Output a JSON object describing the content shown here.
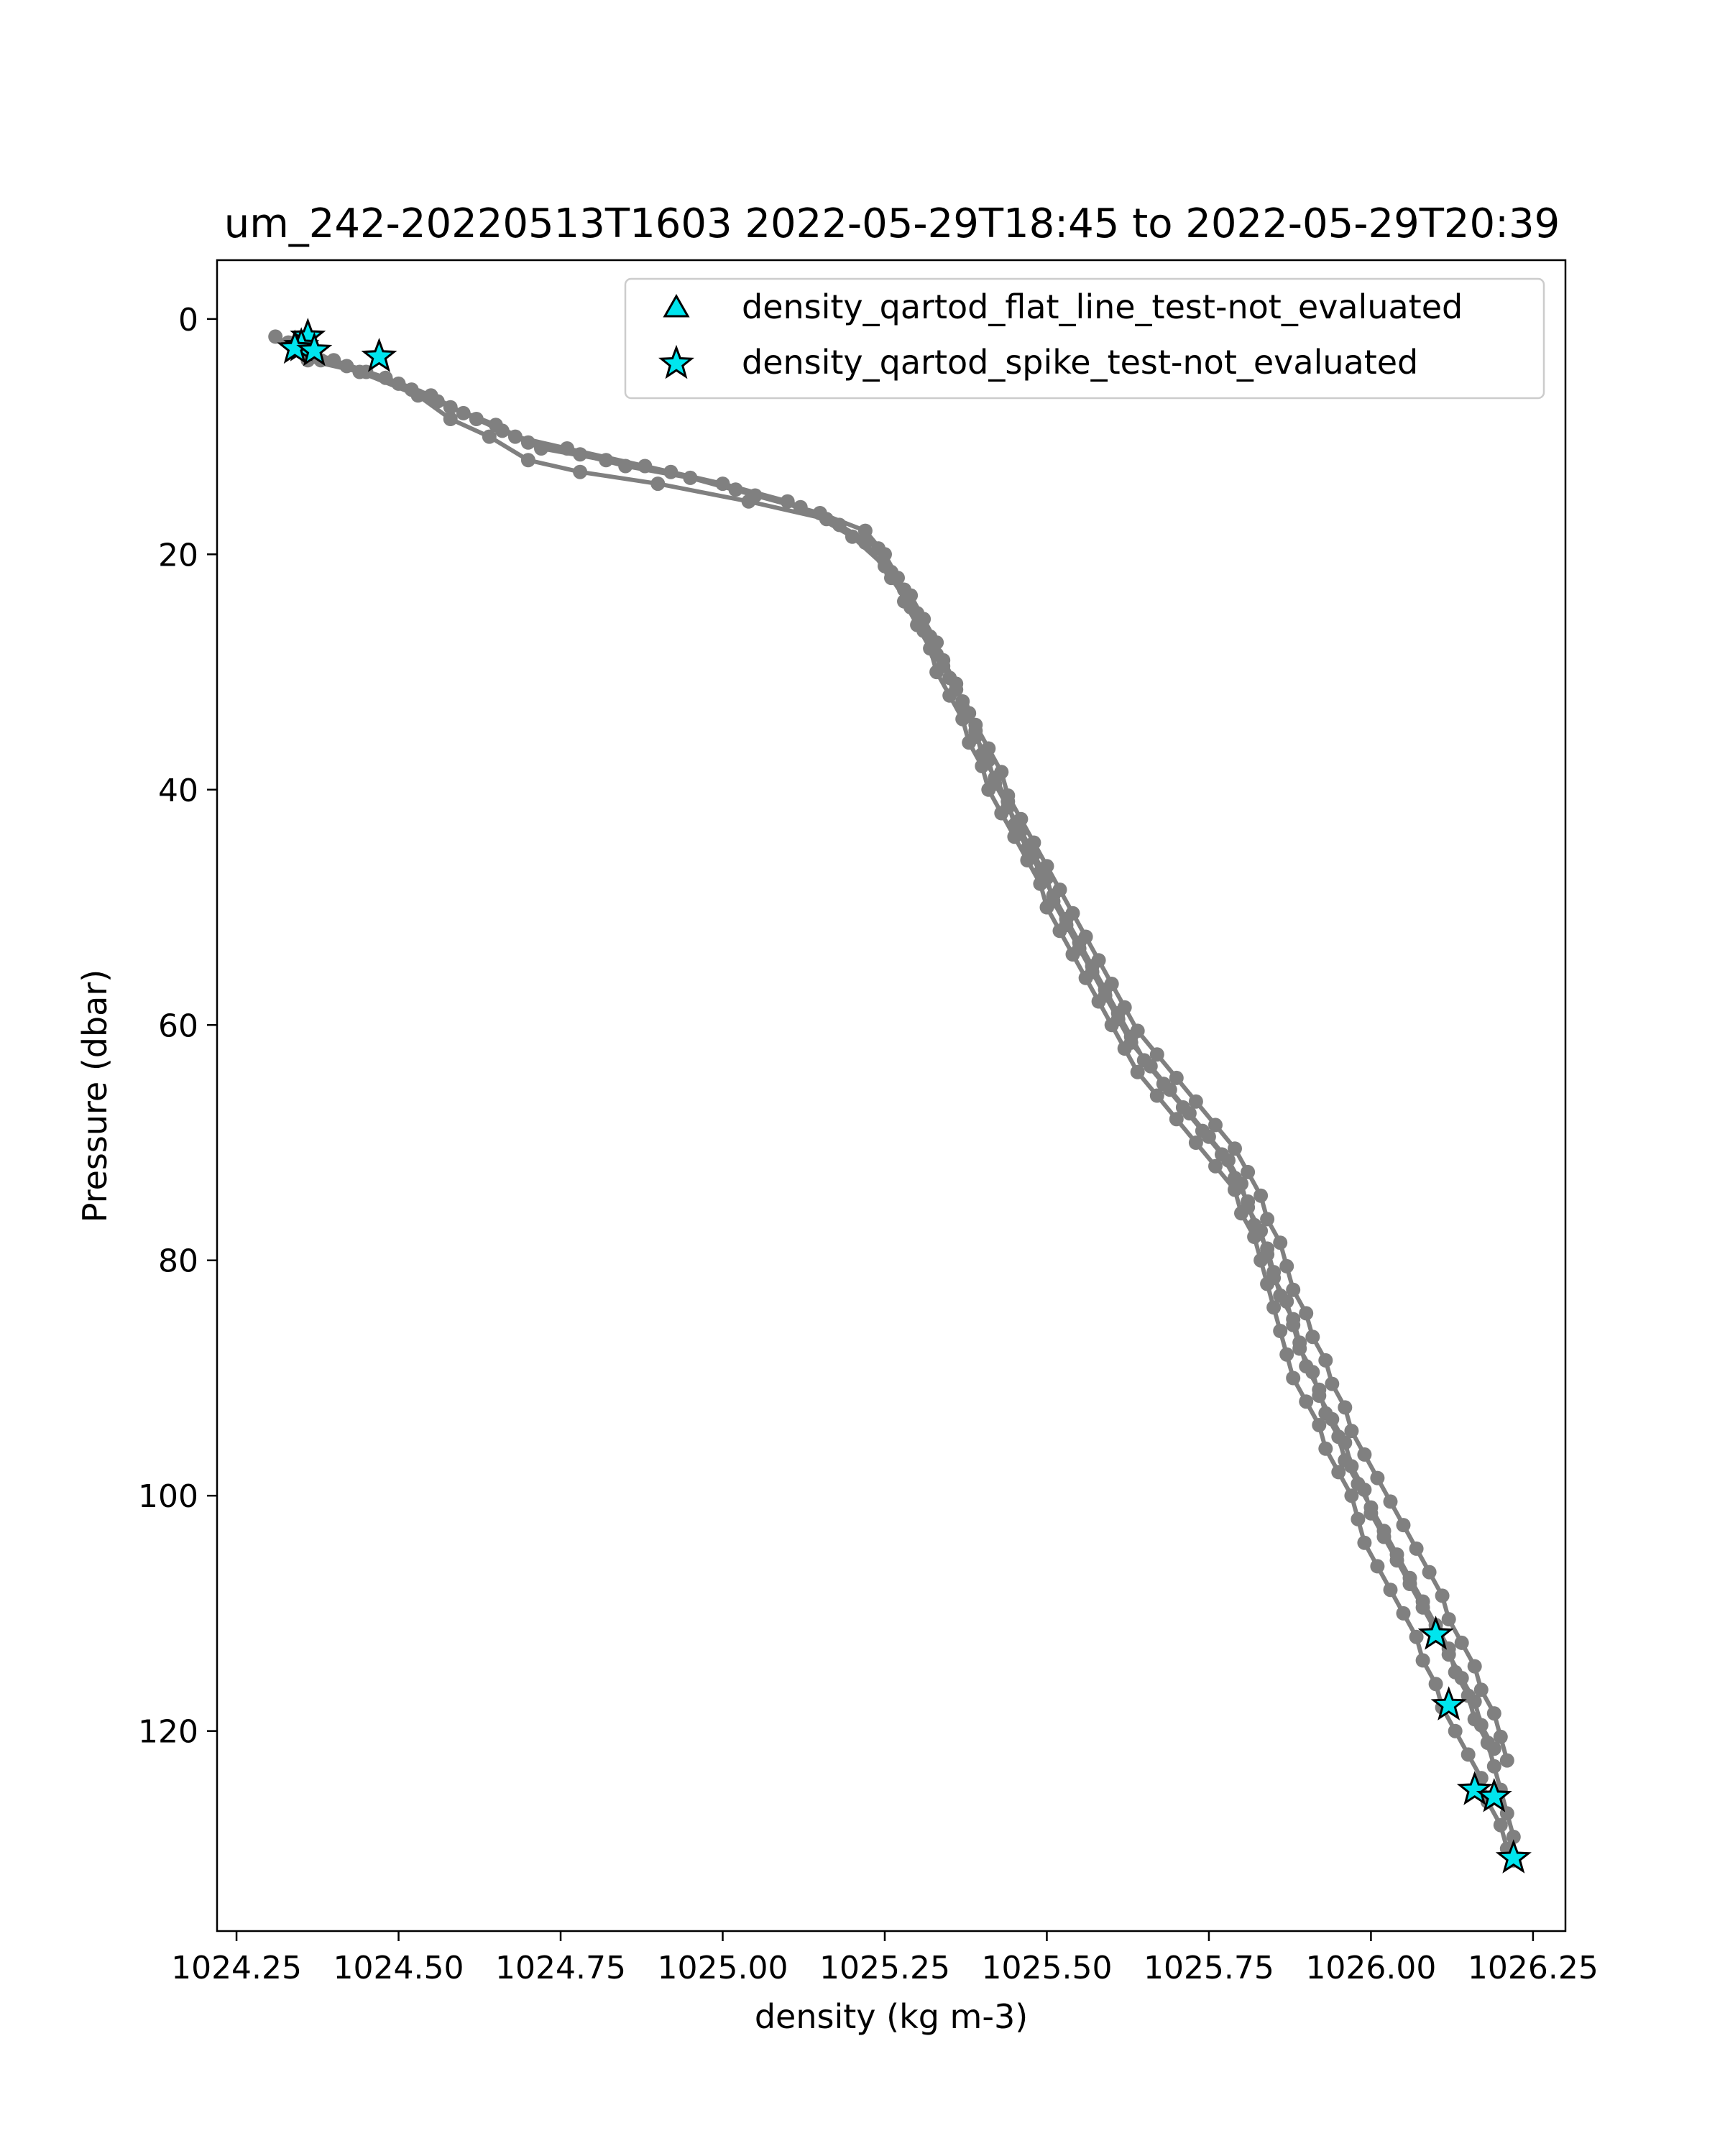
{
  "chart_data": {
    "type": "scatter",
    "title": "um_242-20220513T1603 2022-05-29T18:45 to 2022-05-29T20:39",
    "xlabel": "density (kg m-3)",
    "ylabel": "Pressure (dbar)",
    "xlim": [
      1024.22,
      1026.3
    ],
    "ylim": [
      137,
      -5
    ],
    "y_inverted": true,
    "grid": false,
    "xticks": [
      1024.25,
      1024.5,
      1024.75,
      1025.0,
      1025.25,
      1025.5,
      1025.75,
      1026.0,
      1026.25
    ],
    "xtick_labels": [
      "1024.25",
      "1024.50",
      "1024.75",
      "1025.00",
      "1025.25",
      "1025.50",
      "1025.75",
      "1026.00",
      "1026.25"
    ],
    "yticks": [
      0,
      20,
      40,
      60,
      80,
      100,
      120
    ],
    "ytick_labels": [
      "0",
      "20",
      "40",
      "60",
      "80",
      "100",
      "120"
    ],
    "legend": {
      "placement": "upper-right",
      "entries": [
        {
          "label": "density_qartod_flat_line_test-not_evaluated",
          "marker": "triangle",
          "color": "#00e5ee"
        },
        {
          "label": "density_qartod_spike_test-not_evaluated",
          "marker": "star",
          "color": "#00e5ee"
        }
      ]
    },
    "profile_color": "#808080",
    "series": [
      {
        "points": [
          [
            1024.31,
            1.5
          ],
          [
            1024.34,
            2.5
          ],
          [
            1024.38,
            3.5
          ],
          [
            1024.45,
            4.5
          ],
          [
            1024.52,
            6
          ],
          [
            1024.58,
            7.5
          ],
          [
            1024.65,
            9
          ],
          [
            1024.7,
            10.5
          ],
          [
            1024.78,
            11.5
          ],
          [
            1024.85,
            12.5
          ],
          [
            1024.95,
            13.5
          ],
          [
            1025.05,
            15
          ],
          [
            1025.15,
            16.5
          ],
          [
            1025.22,
            18
          ],
          [
            1025.25,
            20
          ],
          [
            1025.27,
            22
          ],
          [
            1025.28,
            24
          ],
          [
            1025.3,
            26
          ],
          [
            1025.32,
            28
          ],
          [
            1025.33,
            30
          ],
          [
            1025.35,
            32
          ],
          [
            1025.37,
            34
          ],
          [
            1025.38,
            36
          ],
          [
            1025.4,
            38
          ],
          [
            1025.41,
            40
          ],
          [
            1025.43,
            42
          ],
          [
            1025.45,
            44
          ],
          [
            1025.47,
            46
          ],
          [
            1025.49,
            48
          ],
          [
            1025.5,
            50
          ],
          [
            1025.52,
            52
          ],
          [
            1025.54,
            54
          ],
          [
            1025.56,
            56
          ],
          [
            1025.58,
            58
          ],
          [
            1025.6,
            60
          ],
          [
            1025.62,
            62
          ],
          [
            1025.64,
            64
          ],
          [
            1025.67,
            66
          ],
          [
            1025.7,
            68
          ],
          [
            1025.73,
            70
          ],
          [
            1025.76,
            72
          ],
          [
            1025.79,
            74
          ],
          [
            1025.8,
            76
          ],
          [
            1025.82,
            78
          ],
          [
            1025.83,
            80
          ],
          [
            1025.84,
            82
          ],
          [
            1025.85,
            84
          ],
          [
            1025.86,
            86
          ],
          [
            1025.87,
            88
          ],
          [
            1025.88,
            90
          ],
          [
            1025.9,
            92
          ],
          [
            1025.92,
            94
          ],
          [
            1025.93,
            96
          ],
          [
            1025.95,
            98
          ],
          [
            1025.97,
            100
          ],
          [
            1025.98,
            102
          ],
          [
            1025.99,
            104
          ],
          [
            1026.01,
            106
          ],
          [
            1026.03,
            108
          ],
          [
            1026.05,
            110
          ],
          [
            1026.07,
            112
          ],
          [
            1026.08,
            114
          ],
          [
            1026.1,
            116
          ],
          [
            1026.11,
            118
          ],
          [
            1026.13,
            120
          ],
          [
            1026.15,
            122
          ],
          [
            1026.17,
            124
          ],
          [
            1026.18,
            126
          ],
          [
            1026.2,
            128
          ],
          [
            1026.21,
            130
          ]
        ]
      },
      {
        "points": [
          [
            1024.33,
            2
          ],
          [
            1024.37,
            3
          ],
          [
            1024.42,
            4
          ],
          [
            1024.5,
            5.5
          ],
          [
            1024.56,
            7
          ],
          [
            1024.62,
            8.5
          ],
          [
            1024.68,
            10
          ],
          [
            1024.76,
            11
          ],
          [
            1024.88,
            12.5
          ],
          [
            1025.0,
            14
          ],
          [
            1025.1,
            15.5
          ],
          [
            1025.18,
            17.5
          ],
          [
            1025.24,
            19.5
          ],
          [
            1025.26,
            21.5
          ],
          [
            1025.29,
            23.5
          ],
          [
            1025.31,
            25.5
          ],
          [
            1025.33,
            27.5
          ],
          [
            1025.34,
            29.5
          ],
          [
            1025.36,
            31.5
          ],
          [
            1025.38,
            33.5
          ],
          [
            1025.39,
            35.5
          ],
          [
            1025.41,
            37.5
          ],
          [
            1025.42,
            39.5
          ],
          [
            1025.44,
            41.5
          ],
          [
            1025.46,
            43.5
          ],
          [
            1025.48,
            45.5
          ],
          [
            1025.5,
            47.5
          ],
          [
            1025.51,
            49.5
          ],
          [
            1025.53,
            51.5
          ],
          [
            1025.55,
            53.5
          ],
          [
            1025.57,
            55.5
          ],
          [
            1025.59,
            57.5
          ],
          [
            1025.61,
            59.5
          ],
          [
            1025.63,
            61.5
          ],
          [
            1025.66,
            63.5
          ],
          [
            1025.69,
            65.5
          ],
          [
            1025.72,
            67.5
          ],
          [
            1025.75,
            69.5
          ],
          [
            1025.78,
            71.5
          ],
          [
            1025.8,
            73.5
          ],
          [
            1025.81,
            75.5
          ],
          [
            1025.83,
            77.5
          ],
          [
            1025.84,
            79.5
          ],
          [
            1025.85,
            81.5
          ],
          [
            1025.87,
            83.5
          ],
          [
            1025.88,
            85.5
          ],
          [
            1025.89,
            87.5
          ],
          [
            1025.91,
            89.5
          ],
          [
            1025.92,
            91.5
          ],
          [
            1025.94,
            93.5
          ],
          [
            1025.96,
            95.5
          ],
          [
            1025.97,
            97.5
          ],
          [
            1025.99,
            99.5
          ],
          [
            1026.0,
            101.5
          ],
          [
            1026.02,
            103.5
          ],
          [
            1026.04,
            105.5
          ],
          [
            1026.06,
            107.5
          ],
          [
            1026.08,
            109.5
          ],
          [
            1026.1,
            111.5
          ],
          [
            1026.12,
            113.5
          ],
          [
            1026.14,
            115.5
          ],
          [
            1026.16,
            117.5
          ],
          [
            1026.17,
            119.5
          ],
          [
            1026.19,
            121.5
          ]
        ]
      },
      {
        "points": [
          [
            1024.35,
            2.5
          ],
          [
            1024.4,
            3.5
          ],
          [
            1024.48,
            5
          ],
          [
            1024.55,
            6.5
          ],
          [
            1024.6,
            8
          ],
          [
            1024.66,
            9.5
          ],
          [
            1024.72,
            11
          ],
          [
            1024.82,
            12
          ],
          [
            1024.92,
            13
          ],
          [
            1025.02,
            14.5
          ],
          [
            1025.12,
            16
          ],
          [
            1025.2,
            18.5
          ],
          [
            1025.25,
            21
          ],
          [
            1025.28,
            23
          ],
          [
            1025.3,
            25
          ],
          [
            1025.32,
            27
          ],
          [
            1025.34,
            29
          ],
          [
            1025.36,
            31
          ],
          [
            1025.37,
            33
          ],
          [
            1025.39,
            35
          ],
          [
            1025.4,
            37
          ],
          [
            1025.42,
            39
          ],
          [
            1025.44,
            41
          ],
          [
            1025.45,
            43
          ],
          [
            1025.47,
            45
          ],
          [
            1025.49,
            47
          ],
          [
            1025.51,
            49
          ],
          [
            1025.53,
            51
          ],
          [
            1025.55,
            53
          ],
          [
            1025.57,
            55
          ],
          [
            1025.59,
            57
          ],
          [
            1025.61,
            59
          ],
          [
            1025.63,
            61
          ],
          [
            1025.65,
            63
          ],
          [
            1025.68,
            65
          ],
          [
            1025.71,
            67
          ],
          [
            1025.74,
            69
          ],
          [
            1025.77,
            71
          ],
          [
            1025.79,
            73
          ],
          [
            1025.81,
            75
          ],
          [
            1025.82,
            77
          ],
          [
            1025.84,
            79
          ],
          [
            1025.85,
            81
          ],
          [
            1025.86,
            83
          ],
          [
            1025.88,
            85
          ],
          [
            1025.89,
            87
          ],
          [
            1025.9,
            89
          ],
          [
            1025.92,
            91
          ],
          [
            1025.93,
            93
          ],
          [
            1025.95,
            95
          ],
          [
            1025.96,
            97
          ],
          [
            1025.98,
            99
          ],
          [
            1026.0,
            101
          ],
          [
            1026.02,
            103
          ],
          [
            1026.04,
            105
          ],
          [
            1026.06,
            107
          ],
          [
            1026.08,
            109
          ],
          [
            1026.1,
            111
          ],
          [
            1026.12,
            113
          ],
          [
            1026.13,
            115
          ],
          [
            1026.15,
            117
          ],
          [
            1026.16,
            119
          ],
          [
            1026.18,
            121
          ],
          [
            1026.19,
            123
          ],
          [
            1026.2,
            125
          ],
          [
            1026.21,
            127
          ],
          [
            1026.22,
            129
          ],
          [
            1026.22,
            131
          ]
        ]
      },
      {
        "points": [
          [
            1024.36,
            3.5
          ],
          [
            1024.44,
            4.5
          ],
          [
            1024.53,
            6.5
          ],
          [
            1024.58,
            8.5
          ],
          [
            1024.64,
            10
          ],
          [
            1024.7,
            12
          ],
          [
            1024.78,
            13
          ],
          [
            1024.9,
            14
          ],
          [
            1025.04,
            15.5
          ],
          [
            1025.16,
            17
          ],
          [
            1025.22,
            19
          ],
          [
            1025.26,
            22
          ],
          [
            1025.29,
            24.5
          ],
          [
            1025.31,
            26.5
          ],
          [
            1025.33,
            28.5
          ],
          [
            1025.35,
            30.5
          ],
          [
            1025.37,
            32.5
          ],
          [
            1025.39,
            34.5
          ],
          [
            1025.41,
            36.5
          ],
          [
            1025.43,
            38.5
          ],
          [
            1025.44,
            40.5
          ],
          [
            1025.46,
            42.5
          ],
          [
            1025.48,
            44.5
          ],
          [
            1025.5,
            46.5
          ],
          [
            1025.52,
            48.5
          ],
          [
            1025.54,
            50.5
          ],
          [
            1025.56,
            52.5
          ],
          [
            1025.58,
            54.5
          ],
          [
            1025.6,
            56.5
          ],
          [
            1025.62,
            58.5
          ],
          [
            1025.64,
            60.5
          ],
          [
            1025.67,
            62.5
          ],
          [
            1025.7,
            64.5
          ],
          [
            1025.73,
            66.5
          ],
          [
            1025.76,
            68.5
          ],
          [
            1025.79,
            70.5
          ],
          [
            1025.81,
            72.5
          ],
          [
            1025.83,
            74.5
          ],
          [
            1025.84,
            76.5
          ],
          [
            1025.86,
            78.5
          ],
          [
            1025.87,
            80.5
          ],
          [
            1025.88,
            82.5
          ],
          [
            1025.9,
            84.5
          ],
          [
            1025.91,
            86.5
          ],
          [
            1025.93,
            88.5
          ],
          [
            1025.94,
            90.5
          ],
          [
            1025.96,
            92.5
          ],
          [
            1025.97,
            94.5
          ],
          [
            1025.99,
            96.5
          ],
          [
            1026.01,
            98.5
          ],
          [
            1026.03,
            100.5
          ],
          [
            1026.05,
            102.5
          ],
          [
            1026.07,
            104.5
          ],
          [
            1026.09,
            106.5
          ],
          [
            1026.11,
            108.5
          ],
          [
            1026.12,
            110.5
          ],
          [
            1026.14,
            112.5
          ],
          [
            1026.16,
            114.5
          ],
          [
            1026.17,
            116.5
          ],
          [
            1026.19,
            118.5
          ],
          [
            1026.2,
            120.5
          ],
          [
            1026.21,
            122.5
          ]
        ]
      }
    ],
    "flagged_points": [
      {
        "series": "density_qartod_spike_test-not_evaluated",
        "x": 1024.36,
        "y": 1.5
      },
      {
        "series": "density_qartod_spike_test-not_evaluated",
        "x": 1024.35,
        "y": 2.3
      },
      {
        "series": "density_qartod_spike_test-not_evaluated",
        "x": 1024.34,
        "y": 2.5
      },
      {
        "series": "density_qartod_spike_test-not_evaluated",
        "x": 1024.37,
        "y": 2.7
      },
      {
        "series": "density_qartod_spike_test-not_evaluated",
        "x": 1024.47,
        "y": 3.2
      },
      {
        "series": "density_qartod_spike_test-not_evaluated",
        "x": 1026.1,
        "y": 111.8
      },
      {
        "series": "density_qartod_spike_test-not_evaluated",
        "x": 1026.12,
        "y": 117.8
      },
      {
        "series": "density_qartod_spike_test-not_evaluated",
        "x": 1026.16,
        "y": 125.0
      },
      {
        "series": "density_qartod_spike_test-not_evaluated",
        "x": 1026.19,
        "y": 125.6
      },
      {
        "series": "density_qartod_spike_test-not_evaluated",
        "x": 1026.22,
        "y": 130.8
      }
    ]
  }
}
